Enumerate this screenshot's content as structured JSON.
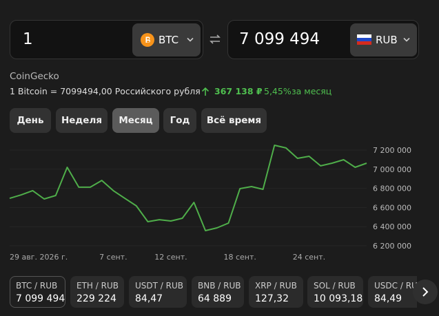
{
  "converter": {
    "from_amount": "1",
    "from_currency": "BTC",
    "to_amount": "7 099 494",
    "to_currency": "RUB"
  },
  "source": "CoinGecko",
  "rate": {
    "text": "1 Bitcoin = 7099494,00 Российского рубля",
    "change": "367 138 ₽",
    "change_percent": "5,45%",
    "period": "за месяц"
  },
  "periods": [
    "День",
    "Неделя",
    "Месяц",
    "Год",
    "Всё время"
  ],
  "active_period": 2,
  "chart_data": {
    "type": "line",
    "categories": [
      "29 авг. 2026 г.",
      null,
      null,
      null,
      null,
      null,
      null,
      null,
      null,
      "7 сент.",
      null,
      null,
      null,
      null,
      "12 сент.",
      null,
      null,
      null,
      null,
      null,
      "18 сент.",
      null,
      null,
      null,
      null,
      null,
      "24 сент.",
      null,
      null,
      null,
      null,
      null
    ],
    "values": [
      6696000,
      6732000,
      6776000,
      6689000,
      6725000,
      7020000,
      6812000,
      6812000,
      6883000,
      6776000,
      6696000,
      6617000,
      6452000,
      6473000,
      6459000,
      6488000,
      6653000,
      6358000,
      6387000,
      6437000,
      6797000,
      6819000,
      6790000,
      7250000,
      7222000,
      7114000,
      7135000,
      7035000,
      7063000,
      7099000,
      7020000,
      7063000
    ],
    "color": "#4fae4a",
    "ylim": [
      6200000,
      7200000
    ],
    "yticks": [
      {
        "value": 6200000,
        "label": "6 200 000"
      },
      {
        "value": 6400000,
        "label": "6 400 000"
      },
      {
        "value": 6600000,
        "label": "6 600 000"
      },
      {
        "value": 6800000,
        "label": "6 800 000"
      },
      {
        "value": 7000000,
        "label": "7 000 000"
      },
      {
        "value": 7200000,
        "label": "7 200 000"
      }
    ],
    "grid": true
  },
  "pairs": [
    {
      "name": "BTC / RUB",
      "value": "7 099 494"
    },
    {
      "name": "ETH / RUB",
      "value": "229 224"
    },
    {
      "name": "USDT / RUB",
      "value": "84,47"
    },
    {
      "name": "BNB / RUB",
      "value": "64 889"
    },
    {
      "name": "XRP / RUB",
      "value": "127,32"
    },
    {
      "name": "SOL / RUB",
      "value": "10 093,18"
    },
    {
      "name": "USDC / RUB",
      "value": "84,49"
    }
  ],
  "active_pair": 0
}
